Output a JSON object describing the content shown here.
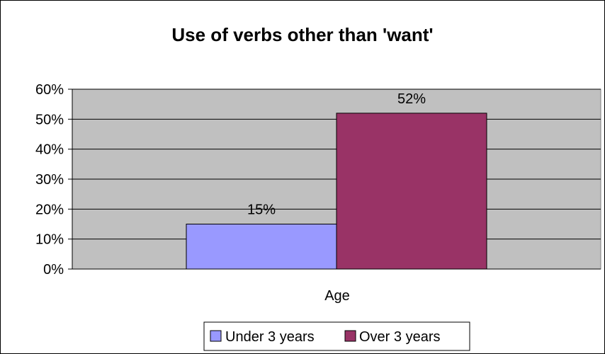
{
  "chart_data": {
    "type": "bar",
    "title": "Use of verbs other than 'want'",
    "categories": [
      "Age"
    ],
    "series": [
      {
        "name": "Under 3 years",
        "values": [
          15
        ],
        "label": "15%",
        "color": "#9999FF"
      },
      {
        "name": "Over 3 years",
        "values": [
          52
        ],
        "label": "52%",
        "color": "#993366"
      }
    ],
    "xlabel": "",
    "ylabel": "",
    "ylim": [
      0,
      60
    ],
    "yticks": [
      "0%",
      "10%",
      "20%",
      "30%",
      "40%",
      "50%",
      "60%"
    ],
    "grid": true,
    "plot_background": "#C0C0C0",
    "legend_position": "bottom"
  }
}
